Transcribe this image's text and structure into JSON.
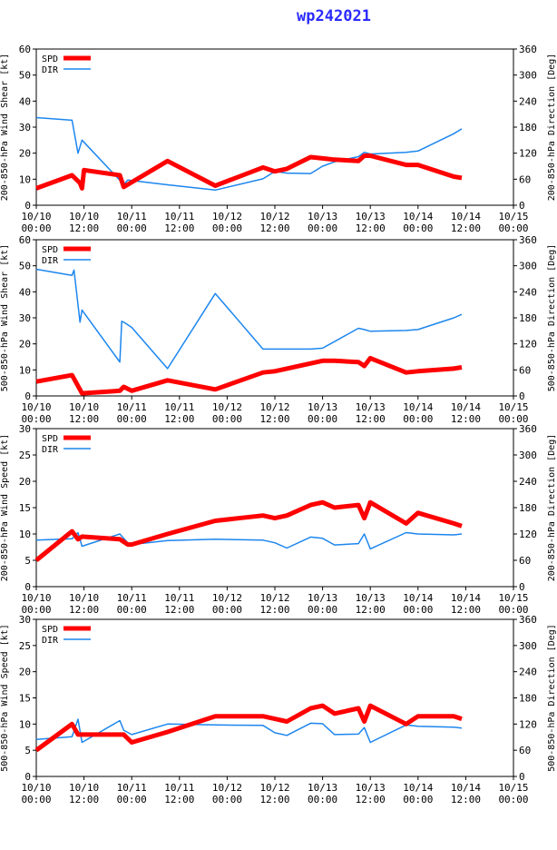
{
  "title": "wp242021",
  "colors": {
    "spd": "#ff0000",
    "dir": "#1c86ee",
    "axis": "#000000"
  },
  "legend": {
    "spd": "SPD",
    "dir": "DIR"
  },
  "x_ticks": [
    {
      "t": 0,
      "l1": "10/10",
      "l2": "00:00"
    },
    {
      "t": 12,
      "l1": "10/10",
      "l2": "12:00"
    },
    {
      "t": 24,
      "l1": "10/11",
      "l2": "00:00"
    },
    {
      "t": 36,
      "l1": "10/11",
      "l2": "12:00"
    },
    {
      "t": 48,
      "l1": "10/12",
      "l2": "00:00"
    },
    {
      "t": 60,
      "l1": "10/12",
      "l2": "12:00"
    },
    {
      "t": 72,
      "l1": "10/13",
      "l2": "00:00"
    },
    {
      "t": 84,
      "l1": "10/13",
      "l2": "12:00"
    },
    {
      "t": 96,
      "l1": "10/14",
      "l2": "00:00"
    },
    {
      "t": 108,
      "l1": "10/14",
      "l2": "12:00"
    },
    {
      "t": 120,
      "l1": "10/15",
      "l2": "00:00"
    }
  ],
  "chart_data": [
    {
      "type": "line",
      "ylabel": "200-850-hPa Wind Shear [kt]",
      "y2label": "200-850-hPa Direction [Deg]",
      "ylim": [
        0,
        60
      ],
      "yticks": [
        0,
        10,
        20,
        30,
        40,
        50,
        60
      ],
      "y2lim": [
        0,
        360
      ],
      "y2ticks": [
        0,
        60,
        120,
        180,
        240,
        300,
        360
      ],
      "xlim": [
        0,
        120
      ],
      "series": [
        {
          "name": "SPD",
          "axis": "left",
          "x": [
            0,
            9,
            11,
            11.5,
            12,
            21,
            22,
            33,
            45,
            57,
            60,
            63,
            69,
            72,
            75,
            81,
            82.5,
            84,
            93,
            96,
            105,
            107
          ],
          "y": [
            6.5,
            11.5,
            8.5,
            6.5,
            13.5,
            11.5,
            7,
            17,
            7.5,
            14.5,
            13,
            14,
            18.5,
            18,
            17.5,
            17,
            19,
            19,
            15.5,
            15.5,
            11,
            10.5
          ]
        },
        {
          "name": "DIR",
          "axis": "right",
          "x": [
            0,
            9,
            10.5,
            11.5,
            22,
            23,
            33,
            45,
            57,
            60,
            63,
            69,
            72,
            75,
            81,
            82.5,
            84,
            93,
            96,
            105,
            107
          ],
          "y": [
            202,
            196,
            120,
            150,
            48,
            58,
            47,
            35,
            61,
            78,
            74,
            73,
            90,
            100,
            112,
            122,
            118,
            122,
            125,
            165,
            176
          ]
        }
      ]
    },
    {
      "type": "line",
      "ylabel": "500-850-hPa Wind Shear [kt]",
      "y2label": "500-850-hPa Direction [Deg]",
      "ylim": [
        0,
        60
      ],
      "yticks": [
        0,
        10,
        20,
        30,
        40,
        50,
        60
      ],
      "y2lim": [
        0,
        360
      ],
      "y2ticks": [
        0,
        60,
        120,
        180,
        240,
        300,
        360
      ],
      "xlim": [
        0,
        120
      ],
      "series": [
        {
          "name": "SPD",
          "axis": "left",
          "x": [
            0,
            9,
            11.5,
            21,
            22,
            24,
            33,
            45,
            57,
            60,
            63,
            69,
            72,
            75,
            81,
            82.5,
            84,
            93,
            96,
            105,
            107
          ],
          "y": [
            5.5,
            8,
            1,
            2,
            3.5,
            2,
            6,
            2.5,
            9,
            9.5,
            10.5,
            12.5,
            13.5,
            13.5,
            13,
            11.5,
            14.5,
            9,
            9.5,
            10.5,
            11
          ]
        },
        {
          "name": "DIR",
          "axis": "right",
          "x": [
            0,
            9,
            9.5,
            11,
            11.5,
            21,
            21.5,
            22,
            24,
            33,
            45,
            57,
            60,
            63,
            69,
            72,
            81,
            82.5,
            84,
            93,
            96,
            105,
            107
          ],
          "y": [
            292,
            278,
            290,
            170,
            198,
            78,
            172,
            170,
            158,
            63,
            236,
            108,
            108,
            108,
            108,
            110,
            156,
            153,
            149,
            151,
            153,
            180,
            188
          ]
        }
      ]
    },
    {
      "type": "line",
      "ylabel": "200-850-hPa Wind Speed [kt]",
      "y2label": "200-850-hPa Direction [Deg]",
      "ylim": [
        0,
        30
      ],
      "yticks": [
        0,
        5,
        10,
        15,
        20,
        25,
        30
      ],
      "y2lim": [
        0,
        360
      ],
      "y2ticks": [
        0,
        60,
        120,
        180,
        240,
        300,
        360
      ],
      "xlim": [
        0,
        120
      ],
      "series": [
        {
          "name": "SPD",
          "axis": "left",
          "x": [
            0,
            9,
            10.5,
            11.5,
            21,
            23,
            24,
            33,
            45,
            57,
            60,
            63,
            69,
            72,
            75,
            81,
            82.5,
            84,
            93,
            96,
            105,
            107
          ],
          "y": [
            5,
            10.5,
            9,
            9.5,
            9,
            8,
            8,
            10,
            12.5,
            13.5,
            13,
            13.5,
            15.5,
            16,
            15,
            15.5,
            13,
            16,
            12,
            14,
            12,
            11.5
          ]
        },
        {
          "name": "DIR",
          "axis": "right",
          "x": [
            0,
            9,
            10.5,
            11.5,
            21,
            23,
            24,
            33,
            45,
            57,
            60,
            63,
            69,
            72,
            75,
            81,
            82.5,
            84,
            93,
            96,
            105,
            107
          ],
          "y": [
            106,
            109,
            123,
            92,
            120,
            100,
            96,
            105,
            108,
            106,
            100,
            88,
            113,
            110,
            95,
            98,
            120,
            86,
            123,
            120,
            118,
            120
          ]
        }
      ]
    },
    {
      "type": "line",
      "ylabel": "500-850-hPa Wind Speed [kt]",
      "y2label": "500-850-hPa Direction [Deg]",
      "ylim": [
        0,
        30
      ],
      "yticks": [
        0,
        5,
        10,
        15,
        20,
        25,
        30
      ],
      "y2lim": [
        0,
        360
      ],
      "y2ticks": [
        0,
        60,
        120,
        180,
        240,
        300,
        360
      ],
      "xlim": [
        0,
        120
      ],
      "series": [
        {
          "name": "SPD",
          "axis": "left",
          "x": [
            0,
            9,
            10.5,
            11.5,
            21,
            22,
            24,
            33,
            45,
            57,
            60,
            63,
            69,
            72,
            75,
            81,
            82.5,
            84,
            93,
            96,
            105,
            107
          ],
          "y": [
            5,
            10,
            8,
            8,
            8,
            8,
            6.5,
            8.5,
            11.5,
            11.5,
            11,
            10.5,
            13,
            13.5,
            12,
            13,
            10.5,
            13.5,
            10,
            11.5,
            11.5,
            11
          ]
        },
        {
          "name": "DIR",
          "axis": "right",
          "x": [
            0,
            9,
            10.5,
            11.5,
            21,
            22,
            24,
            33,
            45,
            57,
            60,
            63,
            69,
            72,
            75,
            81,
            82.5,
            84,
            93,
            96,
            105,
            107
          ],
          "y": [
            85,
            91,
            131,
            78,
            128,
            106,
            96,
            120,
            118,
            117,
            100,
            94,
            122,
            121,
            96,
            97,
            112,
            78,
            118,
            115,
            113,
            111
          ]
        }
      ]
    }
  ]
}
